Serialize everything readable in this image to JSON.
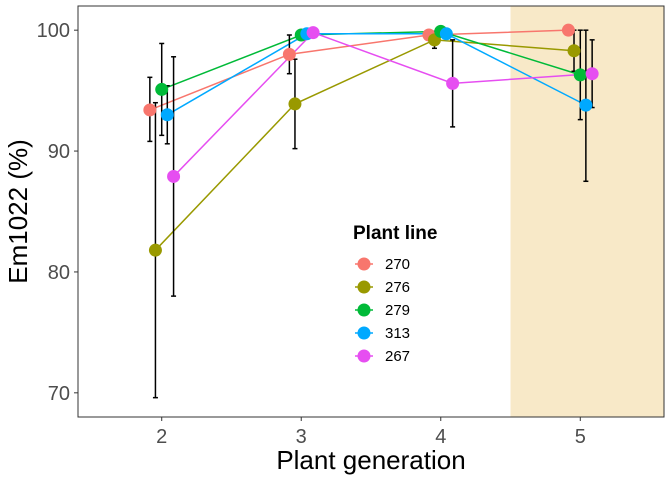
{
  "chart_data": {
    "type": "line",
    "xlabel": "Plant generation",
    "ylabel": "Em1022 (%)",
    "categories": [
      "2",
      "3",
      "4",
      "5"
    ],
    "ylim": [
      68,
      102
    ],
    "yticks": [
      "70",
      "80",
      "90",
      "100"
    ],
    "grid": false,
    "highlight": {
      "from": 4.5,
      "to": 5.6,
      "color": "#F8E9C8"
    },
    "legend": {
      "title": "Plant line",
      "placement": "center-bottom"
    },
    "series": [
      {
        "name": "270",
        "color": "#F8766D",
        "points": [
          {
            "x": 2,
            "y": 93.4,
            "lo": 90.8,
            "hi": 96.1
          },
          {
            "x": 3,
            "y": 98.0,
            "lo": 96.4,
            "hi": 99.6
          },
          {
            "x": 4,
            "y": 99.6,
            "lo": 99.3,
            "hi": 99.9
          },
          {
            "x": 5,
            "y": 100.0,
            "lo": 100.0,
            "hi": 100.0
          }
        ]
      },
      {
        "name": "276",
        "color": "#999900",
        "points": [
          {
            "x": 2,
            "y": 81.8,
            "lo": 69.6,
            "hi": 94.0
          },
          {
            "x": 3,
            "y": 93.9,
            "lo": 90.2,
            "hi": 97.6
          },
          {
            "x": 4,
            "y": 99.2,
            "lo": 98.5,
            "hi": 99.9
          },
          {
            "x": 5,
            "y": 98.3,
            "lo": 96.6,
            "hi": 100.0
          }
        ]
      },
      {
        "name": "279",
        "color": "#00BA38",
        "points": [
          {
            "x": 2,
            "y": 95.1,
            "lo": 91.3,
            "hi": 98.9
          },
          {
            "x": 3,
            "y": 99.6,
            "lo": 99.2,
            "hi": 100.0
          },
          {
            "x": 4,
            "y": 99.9,
            "lo": 99.8,
            "hi": 100.0
          },
          {
            "x": 5,
            "y": 96.3,
            "lo": 92.6,
            "hi": 100.0
          }
        ]
      },
      {
        "name": "313",
        "color": "#00A9FF",
        "points": [
          {
            "x": 2,
            "y": 93.0,
            "lo": 90.6,
            "hi": 95.4
          },
          {
            "x": 3,
            "y": 99.7,
            "lo": 99.4,
            "hi": 100.0
          },
          {
            "x": 4,
            "y": 99.7,
            "lo": 99.4,
            "hi": 100.0
          },
          {
            "x": 5,
            "y": 93.8,
            "lo": 87.5,
            "hi": 100.0
          }
        ]
      },
      {
        "name": "267",
        "color": "#E64EF1",
        "points": [
          {
            "x": 2,
            "y": 87.9,
            "lo": 78.0,
            "hi": 97.8
          },
          {
            "x": 3,
            "y": 99.8,
            "lo": 99.6,
            "hi": 100.0
          },
          {
            "x": 4,
            "y": 95.6,
            "lo": 92.0,
            "hi": 99.2
          },
          {
            "x": 5,
            "y": 96.4,
            "lo": 93.6,
            "hi": 99.2
          }
        ]
      }
    ]
  }
}
